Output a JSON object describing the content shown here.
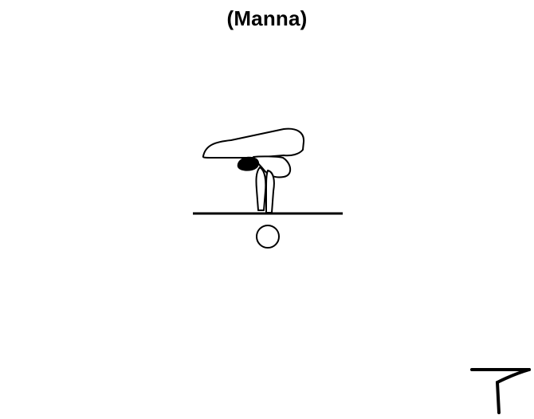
{
  "page": {
    "title": "(Manna)"
  },
  "icons": {
    "figure": "gymnast-manna-pose-icon",
    "beam": "balance-beam-icon",
    "support": "circle-support-icon",
    "corner": "corner-mark-icon"
  },
  "colors": {
    "background": "#ffffff",
    "ink": "#000000"
  }
}
